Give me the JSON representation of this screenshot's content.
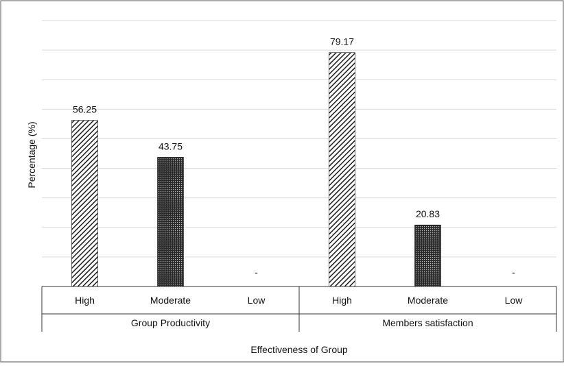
{
  "chart_data": {
    "type": "bar",
    "title": "",
    "ylabel": "Percentage (%)",
    "xlabel": "Effectiveness of Group",
    "ylim": [
      0,
      90
    ],
    "grid": true,
    "groups": [
      {
        "name": "Group Productivity",
        "categories": [
          "High",
          "Moderate",
          "Low"
        ],
        "values": [
          56.25,
          43.75,
          0
        ],
        "labels": [
          "56.25",
          "43.75",
          "-"
        ],
        "patterns": [
          "diagonal-hatch",
          "dotted",
          "none"
        ]
      },
      {
        "name": "Members satisfaction",
        "categories": [
          "High",
          "Moderate",
          "Low"
        ],
        "values": [
          79.17,
          20.83,
          0
        ],
        "labels": [
          "79.17",
          "20.83",
          "-"
        ],
        "patterns": [
          "diagonal-hatch",
          "dotted",
          "none"
        ]
      }
    ]
  },
  "colors": {
    "bar_ink": "#1a1a1a",
    "grid": "#d9d9d9",
    "axis": "#333333"
  }
}
